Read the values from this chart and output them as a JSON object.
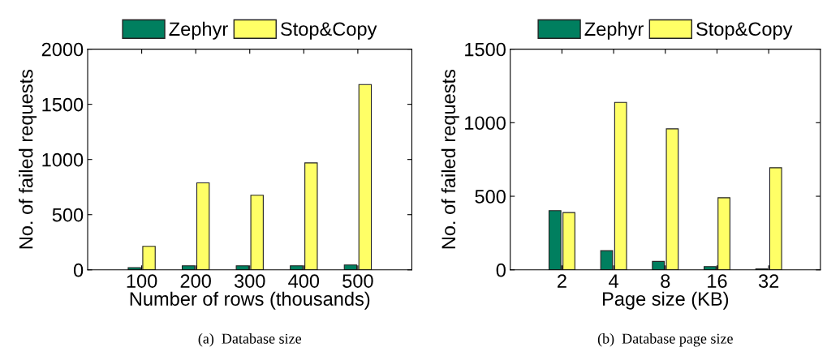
{
  "chart_data": [
    {
      "type": "bar",
      "title": "(a)  Database size",
      "xlabel": "Number of rows (thousands)",
      "ylabel": "No. of failed requests",
      "categories": [
        "100",
        "200",
        "300",
        "400",
        "500"
      ],
      "ylim": [
        0,
        2000
      ],
      "yticks": [
        0,
        500,
        1000,
        1500,
        2000
      ],
      "legend": "top",
      "grid": false,
      "series": [
        {
          "name": "Zephyr",
          "color": "#007f5f",
          "values": [
            20,
            37,
            37,
            37,
            44
          ]
        },
        {
          "name": "Stop&Copy",
          "color": "#ffff66",
          "values": [
            213,
            788,
            676,
            969,
            1679
          ]
        }
      ]
    },
    {
      "type": "bar",
      "title": "(b)  Database page size",
      "xlabel": "Page size (KB)",
      "ylabel": "No. of failed requests",
      "categories": [
        "2",
        "4",
        "8",
        "16",
        "32"
      ],
      "ylim": [
        0,
        1500
      ],
      "yticks": [
        0,
        500,
        1000,
        1500
      ],
      "legend": "top",
      "grid": false,
      "series": [
        {
          "name": "Zephyr",
          "color": "#007f5f",
          "values": [
            402,
            130,
            57,
            22,
            7
          ]
        },
        {
          "name": "Stop&Copy",
          "color": "#ffff66",
          "values": [
            389,
            1138,
            958,
            490,
            694
          ]
        }
      ]
    }
  ]
}
